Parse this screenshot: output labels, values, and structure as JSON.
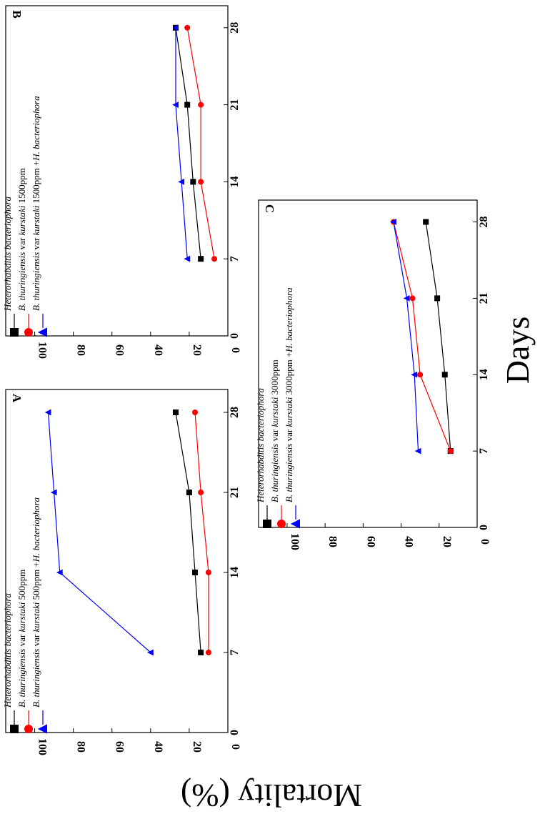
{
  "figure": {
    "xlabel": "Days",
    "ylabel": "Mortality (%)"
  },
  "chart_data": [
    {
      "type": "line",
      "panel_label": "A",
      "x": [
        7,
        14,
        21,
        28
      ],
      "xticks": [
        "0",
        "7",
        "14",
        "21",
        "28"
      ],
      "yticks": [
        "0",
        "20",
        "40",
        "60",
        "80",
        "100"
      ],
      "xlim": [
        0,
        30
      ],
      "ylim": [
        0,
        115
      ],
      "series": [
        {
          "name": "Heterorhabditis bacteriophora",
          "name_parts": [
            {
              "t": "Heterorhabditis bacteriophora",
              "i": true
            }
          ],
          "color": "#000000",
          "marker": "square",
          "values": [
            14,
            17,
            20,
            27
          ]
        },
        {
          "name": "B. thuringiensis var kurstaki 500ppm",
          "name_parts": [
            {
              "t": "B. thuringiensis",
              "i": true
            },
            {
              "t": " var ",
              "i": false
            },
            {
              "t": "kurstaki",
              "i": true
            },
            {
              "t": "  500ppm",
              "i": false
            }
          ],
          "color": "#ff0000",
          "marker": "circle",
          "values": [
            10,
            10,
            14,
            17
          ]
        },
        {
          "name": "B. thuringiensis var kurstaki 500ppm +H. bacteriophora",
          "name_parts": [
            {
              "t": "B. thuringiensis",
              "i": true
            },
            {
              "t": " var ",
              "i": false
            },
            {
              "t": "kurstaki",
              "i": true
            },
            {
              "t": "  500ppm +",
              "i": false
            },
            {
              "t": "H. bacteriophora",
              "i": true
            }
          ],
          "color": "#0000ff",
          "marker": "triangle",
          "values": [
            40,
            87,
            90,
            93
          ]
        }
      ]
    },
    {
      "type": "line",
      "panel_label": "B",
      "x": [
        7,
        14,
        21,
        28
      ],
      "xticks": [
        "0",
        "7",
        "14",
        "21",
        "28"
      ],
      "yticks": [
        "0",
        "20",
        "40",
        "60",
        "80",
        "100"
      ],
      "xlim": [
        0,
        30
      ],
      "ylim": [
        0,
        115
      ],
      "series": [
        {
          "name": "Heterorhabditis bacteriophora",
          "name_parts": [
            {
              "t": "Heterorhabditis bacteriophora",
              "i": true
            }
          ],
          "color": "#000000",
          "marker": "square",
          "values": [
            14,
            18,
            21,
            27
          ]
        },
        {
          "name": "B. thuringiensis var kurstaki 1500ppm",
          "name_parts": [
            {
              "t": "B. thuringiensis",
              "i": true
            },
            {
              "t": " var ",
              "i": false
            },
            {
              "t": "kurstaki",
              "i": true
            },
            {
              "t": "  1500ppm",
              "i": false
            }
          ],
          "color": "#ff0000",
          "marker": "circle",
          "values": [
            7,
            14,
            14,
            21
          ]
        },
        {
          "name": "B. thuringiensis var kurstaki 1500ppm +H. bacteriophora",
          "name_parts": [
            {
              "t": "B. thuringiensis",
              "i": true
            },
            {
              "t": " var ",
              "i": false
            },
            {
              "t": "kurstaki",
              "i": true
            },
            {
              "t": "  1500ppm +",
              "i": false
            },
            {
              "t": "H. bacteriophora",
              "i": true
            }
          ],
          "color": "#0000ff",
          "marker": "triangle",
          "values": [
            21,
            24,
            27,
            27
          ]
        }
      ]
    },
    {
      "type": "line",
      "panel_label": "C",
      "x": [
        7,
        14,
        21,
        28
      ],
      "xticks": [
        "0",
        "7",
        "14",
        "21",
        "28"
      ],
      "yticks": [
        "0",
        "20",
        "40",
        "60",
        "80",
        "100"
      ],
      "xlim": [
        0,
        30
      ],
      "ylim": [
        0,
        115
      ],
      "series": [
        {
          "name": "Heterorhabditis bacteriophora",
          "name_parts": [
            {
              "t": "Heterorhabditis bacteriophora",
              "i": true
            }
          ],
          "color": "#000000",
          "marker": "square",
          "values": [
            14,
            17,
            21,
            27
          ]
        },
        {
          "name": "B. thuringiensis var kurstaki 3000ppm",
          "name_parts": [
            {
              "t": "B. thuringiensis",
              "i": true
            },
            {
              "t": " var ",
              "i": false
            },
            {
              "t": "kurstaki",
              "i": true
            },
            {
              "t": "  3000ppm",
              "i": false
            }
          ],
          "color": "#ff0000",
          "marker": "circle",
          "values": [
            14,
            30,
            34,
            44
          ]
        },
        {
          "name": "B. thuringiensis var kurstaki 3000ppm +H. bacteriophora",
          "name_parts": [
            {
              "t": "B. thuringiensis",
              "i": true
            },
            {
              "t": " var ",
              "i": false
            },
            {
              "t": "kurstaki",
              "i": true
            },
            {
              "t": "  3000ppm +",
              "i": false
            },
            {
              "t": "H. bacteriophora",
              "i": true
            }
          ],
          "color": "#0000ff",
          "marker": "triangle",
          "values": [
            31,
            33,
            37,
            44
          ]
        }
      ]
    }
  ]
}
